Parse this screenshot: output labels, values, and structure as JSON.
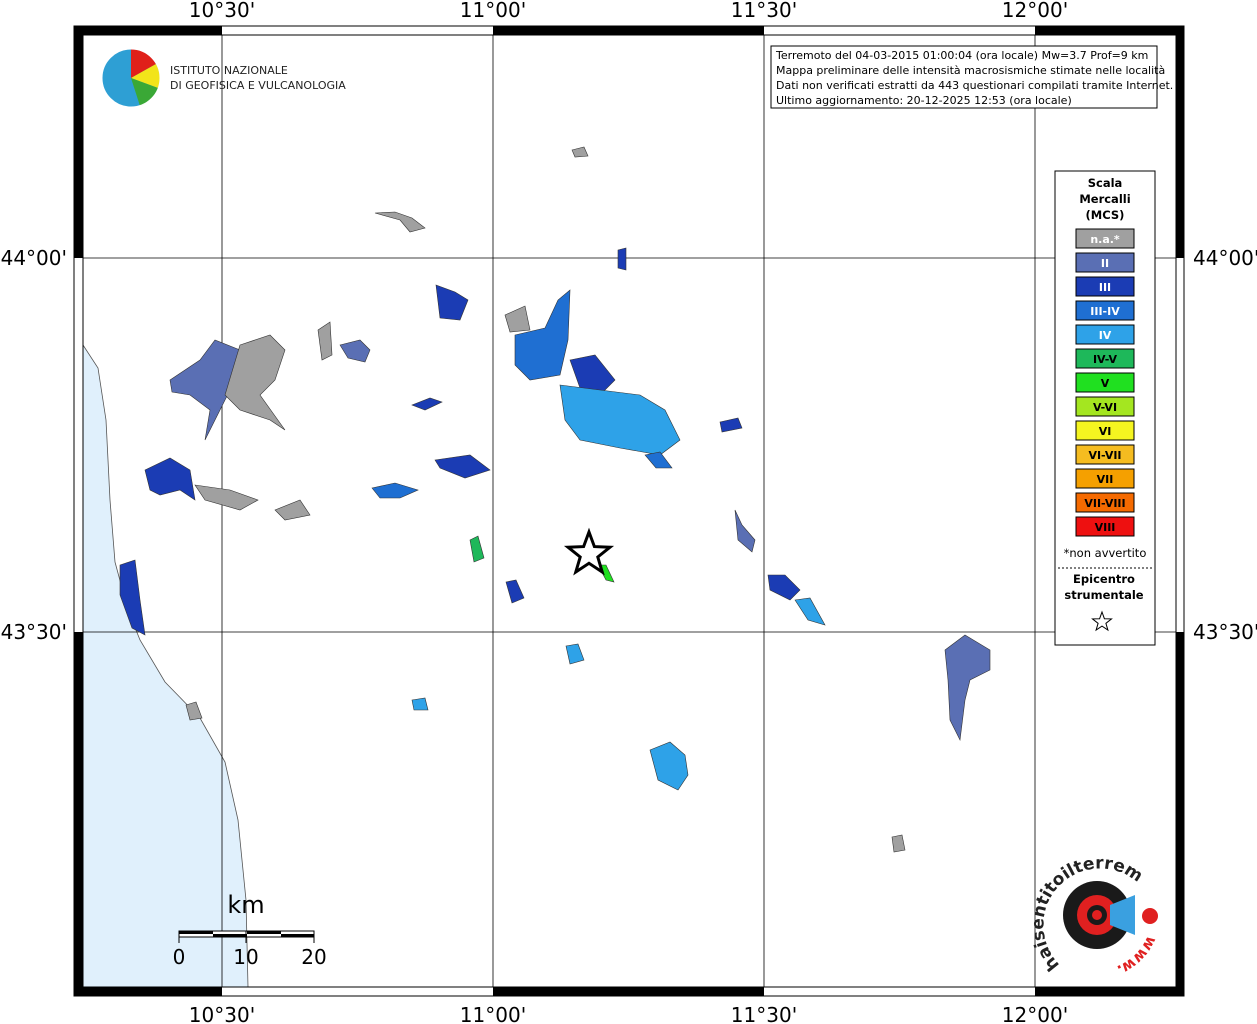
{
  "map": {
    "lon_labels": [
      "10°30'",
      "11°00'",
      "11°30'",
      "12°00'"
    ],
    "lat_labels": [
      "44°00'",
      "43°30'"
    ]
  },
  "info": {
    "lines": [
      "Terremoto del 04-03-2015 01:00:04 (ora locale) Mw=3.7 Prof=9 km",
      "Mappa preliminare delle intensità macrosismiche stimate nelle località",
      "Dati non verificati estratti da 443 questionari compilati tramite Internet.",
      "Ultimo aggiornamento: 20-12-2025 12:53 (ora locale)"
    ]
  },
  "ingv": {
    "lines": [
      "ISTITUTO NAZIONALE",
      "DI GEOFISICA E VULCANOLOGIA"
    ]
  },
  "legend": {
    "title": [
      "Scala",
      "Mercalli",
      "(MCS)"
    ],
    "items": [
      {
        "label": "n.a.*",
        "color": "#a0a0a0"
      },
      {
        "label": "II",
        "color": "#5a6fb4"
      },
      {
        "label": "III",
        "color": "#1b3cb4"
      },
      {
        "label": "III-IV",
        "color": "#1f6fd2"
      },
      {
        "label": "IV",
        "color": "#2ea2e8"
      },
      {
        "label": "IV-V",
        "color": "#1eb85a"
      },
      {
        "label": "V",
        "color": "#20e020"
      },
      {
        "label": "V-VI",
        "color": "#a4e620"
      },
      {
        "label": "VI",
        "color": "#f5f520"
      },
      {
        "label": "VI-VII",
        "color": "#f5bc20"
      },
      {
        "label": "VII",
        "color": "#f5a000"
      },
      {
        "label": "VII-VIII",
        "color": "#f56a00"
      },
      {
        "label": "VIII",
        "color": "#ee1010"
      }
    ],
    "note": "*non avvertito",
    "epicenter": [
      "Epicentro",
      "strumentale"
    ]
  },
  "scale": {
    "unit": "km",
    "ticks": [
      "0",
      "10",
      "20"
    ]
  },
  "site": {
    "name": "haisentitoilterremoto.it",
    "prefix": "www."
  }
}
